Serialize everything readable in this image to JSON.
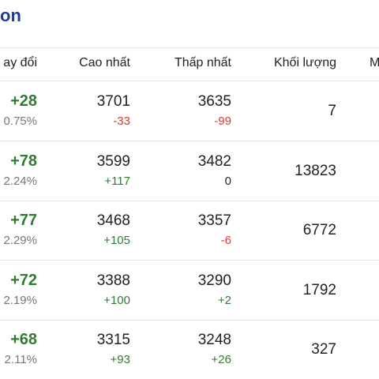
{
  "title": "on",
  "table": {
    "header": [
      "ay đổi",
      "Cao nhất",
      "Thấp nhất",
      "Khối lượng",
      "M"
    ],
    "rows": [
      {
        "change": "+28",
        "percent": "0.75%",
        "high": "3701",
        "high_change": "-33",
        "low": "3635",
        "low_change": "-99",
        "volume": "7"
      },
      {
        "change": "+78",
        "percent": "2.24%",
        "high": "3599",
        "high_change": "+117",
        "low": "3482",
        "low_change": "0",
        "volume": "13823"
      },
      {
        "change": "+77",
        "percent": "2.29%",
        "high": "3468",
        "high_change": "+105",
        "low": "3357",
        "low_change": "-6",
        "volume": "6772"
      },
      {
        "change": "+72",
        "percent": "2.19%",
        "high": "3388",
        "high_change": "+100",
        "low": "3290",
        "low_change": "+2",
        "volume": "1792"
      },
      {
        "change": "+68",
        "percent": "2.11%",
        "high": "3315",
        "high_change": "+93",
        "low": "3248",
        "low_change": "+26",
        "volume": "327"
      }
    ]
  }
}
